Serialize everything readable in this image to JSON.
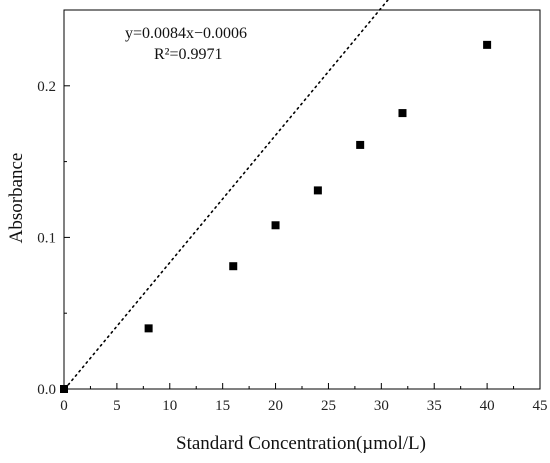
{
  "chart_data": {
    "type": "scatter",
    "title": "",
    "xlabel": "Standard Concentration(µmol/L)",
    "ylabel": "Absorbance",
    "xlim": [
      0,
      45
    ],
    "ylim": [
      0,
      0.25
    ],
    "x_ticks": [
      0,
      5,
      10,
      15,
      20,
      25,
      30,
      35,
      40,
      45
    ],
    "x_tick_labels": [
      "0",
      "5",
      "10",
      "15",
      "20",
      "25",
      "30",
      "35",
      "40",
      "45"
    ],
    "y_ticks": [
      0,
      0.1,
      0.2
    ],
    "y_tick_labels": [
      "0.0",
      "0.1",
      "0.2"
    ],
    "grid": false,
    "marker": "square",
    "marker_color": "#000000",
    "series": [
      {
        "x": [
          0,
          8,
          16,
          20,
          24,
          28,
          32,
          40
        ],
        "y": [
          0.0,
          0.04,
          0.081,
          0.108,
          0.131,
          0.161,
          0.182,
          0.227
        ]
      }
    ],
    "fit_line": {
      "style": "dotted",
      "color": "#000000",
      "slope": 0.0084,
      "intercept": -0.0006,
      "x_range": [
        0,
        40
      ]
    },
    "annotations": {
      "equation": "y=0.0084x−0.0006",
      "r_squared": "R²=0.9971"
    }
  }
}
